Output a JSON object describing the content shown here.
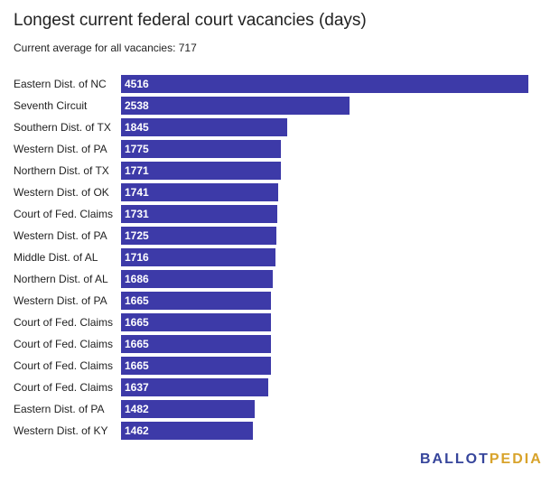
{
  "header": {
    "title": "Longest current federal court vacancies (days)",
    "subtitle": "Current average for all vacancies: 717"
  },
  "brand": {
    "part1": "BALLOT",
    "part2": "PEDIA",
    "color1": "#36459b",
    "color2": "#d8a32b"
  },
  "colors": {
    "bar": "#3d3aa8",
    "bar_label": "#ffffff"
  },
  "chart_data": {
    "type": "bar",
    "orientation": "horizontal",
    "title": "Longest current federal court vacancies (days)",
    "subtitle": "Current average for all vacancies: 717",
    "categories": [
      "Eastern Dist. of NC",
      "Seventh Circuit",
      "Southern Dist. of TX",
      "Western Dist. of PA",
      "Northern Dist. of TX",
      "Western Dist. of OK",
      "Court of Fed. Claims",
      "Western Dist. of PA",
      "Middle Dist. of AL",
      "Northern Dist. of AL",
      "Western Dist. of PA",
      "Court of Fed. Claims",
      "Court of Fed. Claims",
      "Court of Fed. Claims",
      "Court of Fed. Claims",
      "Eastern Dist. of PA",
      "Western Dist. of KY"
    ],
    "values": [
      4516,
      2538,
      1845,
      1775,
      1771,
      1741,
      1731,
      1725,
      1716,
      1686,
      1665,
      1665,
      1665,
      1665,
      1637,
      1482,
      1462
    ],
    "xlim": [
      0,
      4516
    ],
    "data_labels": true,
    "grid": false,
    "legend": "none"
  }
}
